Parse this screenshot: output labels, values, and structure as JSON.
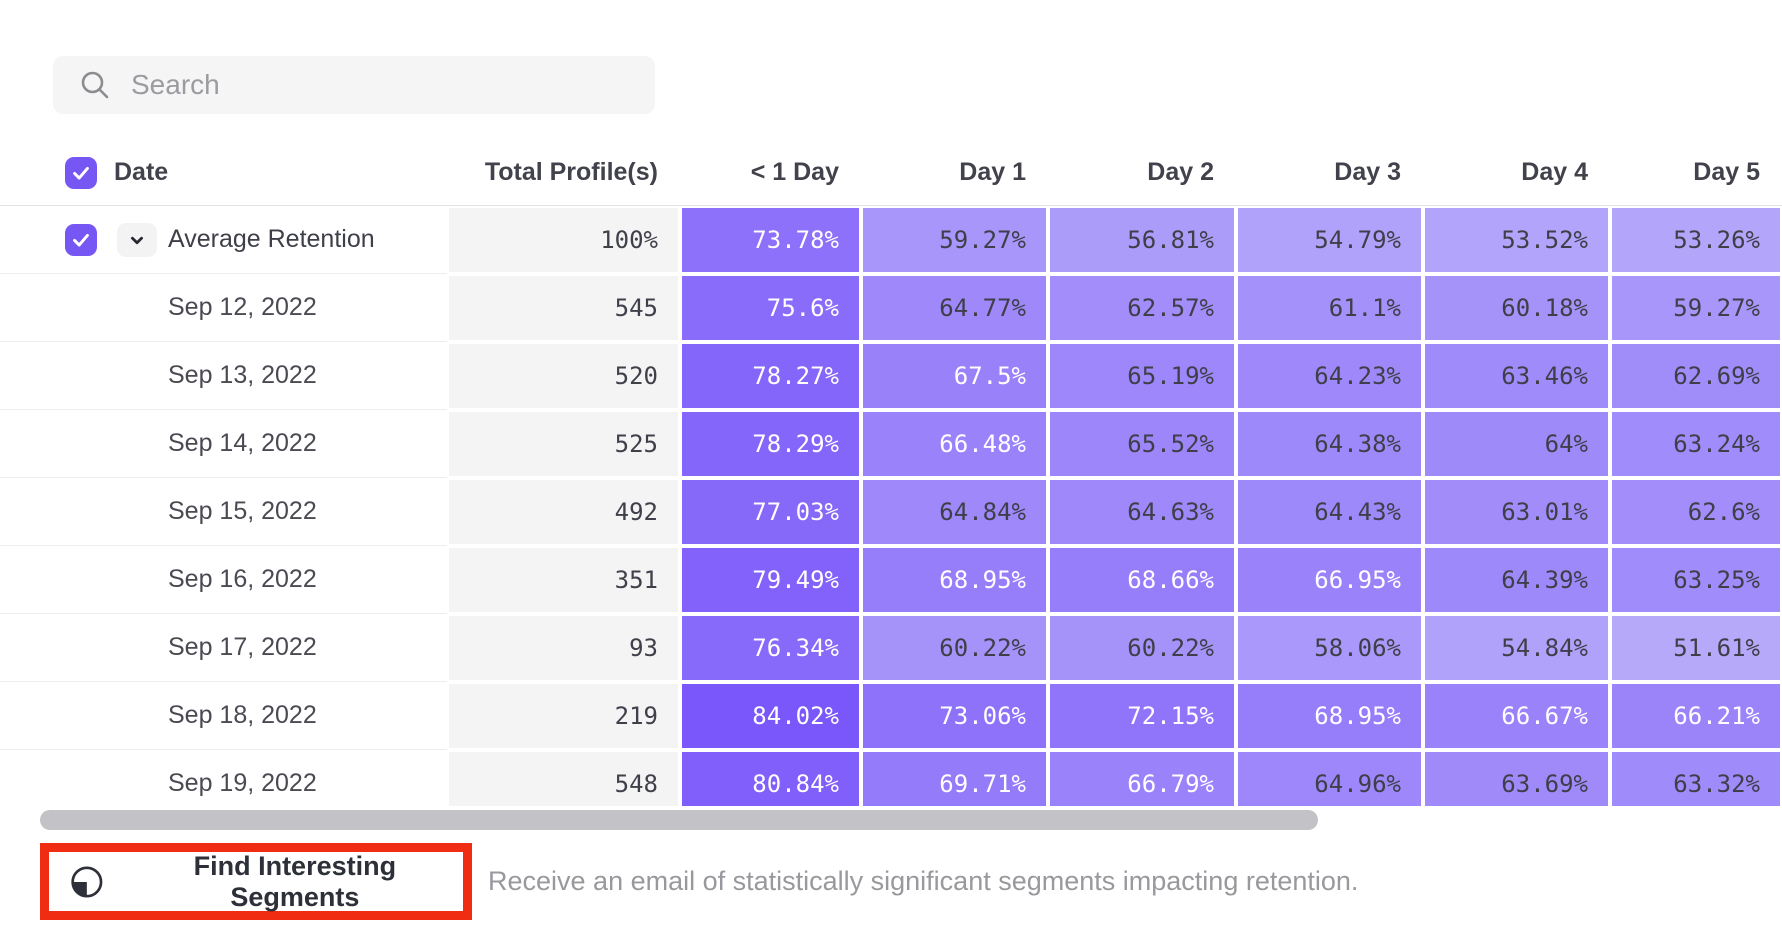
{
  "search": {
    "placeholder": "Search"
  },
  "table": {
    "columns": [
      "Date",
      "Total Profile(s)",
      "< 1 Day",
      "Day 1",
      "Day 2",
      "Day 3",
      "Day 4",
      "Day 5"
    ],
    "average_row": {
      "label": "Average Retention",
      "total_display": "100%",
      "values": [
        73.78,
        59.27,
        56.81,
        54.79,
        53.52,
        53.26
      ]
    },
    "rows": [
      {
        "date": "Sep 12, 2022",
        "total": "545",
        "values": [
          75.6,
          64.77,
          62.57,
          61.1,
          60.18,
          59.27
        ]
      },
      {
        "date": "Sep 13, 2022",
        "total": "520",
        "values": [
          78.27,
          67.5,
          65.19,
          64.23,
          63.46,
          62.69
        ]
      },
      {
        "date": "Sep 14, 2022",
        "total": "525",
        "values": [
          78.29,
          66.48,
          65.52,
          64.38,
          64,
          63.24
        ]
      },
      {
        "date": "Sep 15, 2022",
        "total": "492",
        "values": [
          77.03,
          64.84,
          64.63,
          64.43,
          63.01,
          62.6
        ]
      },
      {
        "date": "Sep 16, 2022",
        "total": "351",
        "values": [
          79.49,
          68.95,
          68.66,
          66.95,
          64.39,
          63.25
        ]
      },
      {
        "date": "Sep 17, 2022",
        "total": "93",
        "values": [
          76.34,
          60.22,
          60.22,
          58.06,
          54.84,
          51.61
        ]
      },
      {
        "date": "Sep 18, 2022",
        "total": "219",
        "values": [
          84.02,
          73.06,
          72.15,
          68.95,
          66.67,
          66.21
        ]
      },
      {
        "date": "Sep 19, 2022",
        "total": "548",
        "values": [
          80.84,
          69.71,
          66.79,
          64.96,
          63.69,
          63.32
        ]
      }
    ],
    "value_suffix": "%"
  },
  "footer": {
    "button_label": "Find Interesting Segments",
    "description": "Receive an email of statistically significant segments impacting retention."
  },
  "colors": {
    "accent_purple": "#7757f3",
    "cell_text_dark": "#3e3f48",
    "cell_text_light": "#ffffff",
    "highlight_red": "#f02d12",
    "scrollbar_thumb": "#c3c3c7",
    "white_text_threshold": 66
  }
}
